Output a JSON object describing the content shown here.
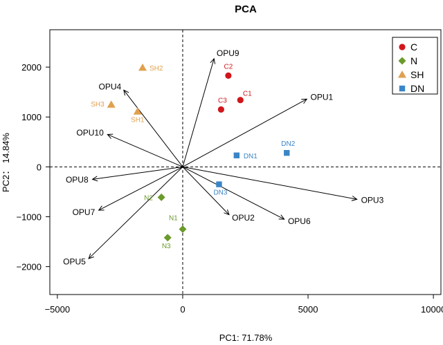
{
  "chart_data": {
    "type": "scatter",
    "title": "PCA",
    "xlabel": "PC1: 71.78%",
    "ylabel": "PC2： 14.84%",
    "xlim": [
      -5300,
      10300
    ],
    "ylim": [
      -2560,
      2750
    ],
    "xticks": [
      -5000,
      0,
      5000,
      10000
    ],
    "xtick_labels": [
      "−5000",
      "0",
      "5000",
      "10000"
    ],
    "yticks": [
      -2000,
      -1000,
      0,
      1000,
      2000
    ],
    "ytick_labels": [
      "−2000",
      "−1000",
      "0",
      "1000",
      "2000"
    ],
    "grid": false,
    "reference_lines": {
      "x": 0,
      "y": 0,
      "style": "dashed"
    },
    "legend": {
      "position": "top-right"
    },
    "series": [
      {
        "name": "C",
        "marker": "circle",
        "color": "#d0161b",
        "points": [
          {
            "label": "C1",
            "x": 2300,
            "y": 1340
          },
          {
            "label": "C2",
            "x": 1820,
            "y": 1830
          },
          {
            "label": "C3",
            "x": 1530,
            "y": 1150
          }
        ]
      },
      {
        "name": "N",
        "marker": "diamond",
        "color": "#6a9a2a",
        "points": [
          {
            "label": "N1",
            "x": 0,
            "y": -1250
          },
          {
            "label": "N2",
            "x": -850,
            "y": -610
          },
          {
            "label": "N3",
            "x": -600,
            "y": -1420
          }
        ]
      },
      {
        "name": "SH",
        "marker": "triangle",
        "color": "#e0a04e",
        "points": [
          {
            "label": "SH1",
            "x": -1800,
            "y": 1110
          },
          {
            "label": "SH2",
            "x": -1600,
            "y": 1990
          },
          {
            "label": "SH3",
            "x": -2850,
            "y": 1250
          }
        ]
      },
      {
        "name": "DN",
        "marker": "square",
        "color": "#3a85c6",
        "points": [
          {
            "label": "DN1",
            "x": 2150,
            "y": 230
          },
          {
            "label": "DN2",
            "x": 4150,
            "y": 280
          },
          {
            "label": "DN3",
            "x": 1450,
            "y": -350
          }
        ]
      }
    ],
    "loadings": [
      {
        "label": "OPU1",
        "x": 4950,
        "y": 1360
      },
      {
        "label": "OPU2",
        "x": 1850,
        "y": -960
      },
      {
        "label": "OPU3",
        "x": 6950,
        "y": -650
      },
      {
        "label": "OPU4",
        "x": -2350,
        "y": 1540
      },
      {
        "label": "OPU5",
        "x": -3750,
        "y": -1840
      },
      {
        "label": "OPU6",
        "x": 4050,
        "y": -1050
      },
      {
        "label": "OPU7",
        "x": -3350,
        "y": -870
      },
      {
        "label": "OPU8",
        "x": -3600,
        "y": -250
      },
      {
        "label": "OPU9",
        "x": 1250,
        "y": 2170
      },
      {
        "label": "OPU10",
        "x": -3000,
        "y": 650
      }
    ]
  }
}
